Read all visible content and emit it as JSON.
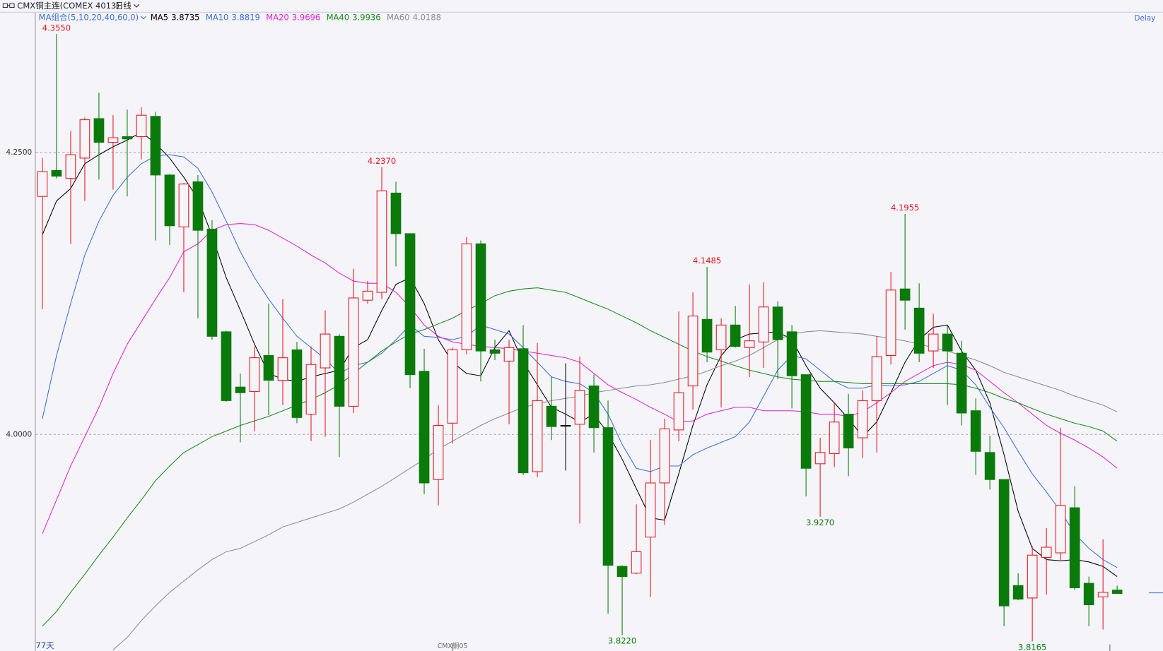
{
  "chart_data": {
    "type": "candlestick",
    "title": "CMX铜主连(COMEX 4013)",
    "period": "日线",
    "ma_group": "MA组合(5,10,20,40,60,0)",
    "delay": "Delay",
    "count_label": "77天",
    "ylim": [
      3.808,
      4.374
    ],
    "yticks": [
      {
        "value": 4.25,
        "label": "4.2500"
      },
      {
        "value": 4.0,
        "label": "4.0000"
      }
    ],
    "grid": true,
    "up_color": "#e8141c",
    "down_color": "#0a7a0a",
    "open": [
      4.211,
      4.234,
      4.227,
      4.245,
      4.28,
      4.259,
      4.264,
      4.264,
      4.282,
      4.23,
      4.184,
      4.224,
      4.182,
      4.091,
      4.042,
      4.038,
      4.07,
      4.048,
      4.075,
      4.018,
      4.059,
      4.087,
      4.025,
      4.119,
      4.126,
      4.214,
      4.178,
      4.056,
      3.96,
      4.01,
      4.075,
      4.169,
      4.075,
      4.065,
      4.076,
      3.967,
      4.025,
      4.008,
      4.009,
      4.043,
      4.006,
      3.883,
      3.877,
      3.909,
      3.957,
      4.004,
      4.043,
      4.102,
      4.075,
      4.097,
      4.077,
      4.082,
      4.113,
      4.091,
      4.053,
      3.974,
      3.983,
      4.018,
      3.997,
      4.03,
      4.07,
      4.129,
      4.112,
      4.074,
      4.089,
      4.072,
      4.021,
      3.984,
      3.96,
      3.866,
      3.855,
      3.891,
      3.895,
      3.935,
      3.868,
      3.856,
      3.862
    ],
    "high": [
      4.245,
      4.355,
      4.269,
      4.281,
      4.303,
      4.283,
      4.288,
      4.29,
      4.286,
      4.231,
      4.223,
      4.23,
      4.19,
      4.092,
      4.054,
      4.078,
      4.116,
      4.12,
      4.082,
      4.078,
      4.11,
      4.089,
      4.147,
      4.136,
      4.237,
      4.224,
      4.178,
      4.076,
      4.026,
      4.077,
      4.175,
      4.172,
      4.084,
      4.084,
      4.097,
      4.081,
      4.051,
      4.063,
      4.069,
      4.053,
      4.03,
      3.884,
      3.938,
      3.995,
      4.014,
      4.109,
      4.126,
      4.1485,
      4.103,
      4.114,
      4.133,
      4.135,
      4.118,
      4.097,
      4.053,
      3.997,
      4.028,
      4.036,
      4.039,
      4.087,
      4.144,
      4.1955,
      4.134,
      4.107,
      4.097,
      4.083,
      4.032,
      3.999,
      3.96,
      3.877,
      3.901,
      3.917,
      4.006,
      3.954,
      3.874,
      3.907,
      3.866
    ],
    "low": [
      4.111,
      4.227,
      4.169,
      4.207,
      4.226,
      4.217,
      4.211,
      4.244,
      4.172,
      4.168,
      4.126,
      4.103,
      4.084,
      4.029,
      3.993,
      4.003,
      4.017,
      4.026,
      4.01,
      3.994,
      3.998,
      3.98,
      4.019,
      4.116,
      4.12,
      4.149,
      4.041,
      3.947,
      3.937,
      3.992,
      4.071,
      4.047,
      4.066,
      4.009,
      3.964,
      3.962,
      3.995,
      3.968,
      3.921,
      3.984,
      3.841,
      3.822,
      3.876,
      3.856,
      3.92,
      3.994,
      4.022,
      4.064,
      4.024,
      4.077,
      4.051,
      4.059,
      4.049,
      4.023,
      3.945,
      3.927,
      3.971,
      3.963,
      3.979,
      3.984,
      4.062,
      4.093,
      4.064,
      4.059,
      4.026,
      4.008,
      3.964,
      3.951,
      3.83,
      3.853,
      3.8165,
      3.858,
      3.888,
      3.862,
      3.83,
      3.827,
      3.859
    ],
    "close": [
      4.233,
      4.229,
      4.248,
      4.279,
      4.259,
      4.263,
      4.262,
      4.283,
      4.23,
      4.185,
      4.222,
      4.181,
      4.087,
      4.03,
      4.037,
      4.068,
      4.048,
      4.068,
      4.015,
      4.062,
      4.089,
      4.025,
      4.121,
      4.127,
      4.216,
      4.178,
      4.053,
      3.957,
      4.008,
      4.075,
      4.169,
      4.074,
      4.072,
      4.077,
      3.966,
      4.03,
      4.007,
      4.008,
      4.039,
      4.006,
      3.884,
      3.874,
      3.896,
      3.957,
      4.005,
      4.037,
      4.105,
      4.073,
      4.097,
      4.078,
      4.083,
      4.113,
      4.084,
      4.052,
      3.97,
      3.984,
      4.011,
      3.988,
      4.03,
      4.069,
      4.128,
      4.119,
      4.072,
      4.089,
      4.074,
      4.019,
      3.985,
      3.96,
      3.848,
      3.854,
      3.893,
      3.9,
      3.937,
      3.864,
      3.849,
      3.86,
      3.859
    ],
    "series": [
      {
        "name": "MA5",
        "color": "#000000",
        "current": "3.8735",
        "values": [
          4.177,
          4.207,
          4.218,
          4.24,
          4.248,
          4.255,
          4.261,
          4.268,
          4.258,
          4.245,
          4.228,
          4.209,
          4.176,
          4.139,
          4.11,
          4.08,
          4.054,
          4.049,
          4.047,
          4.051,
          4.054,
          4.057,
          4.077,
          4.084,
          4.11,
          4.133,
          4.139,
          4.116,
          4.084,
          4.064,
          4.054,
          4.052,
          4.077,
          4.092,
          4.064,
          4.044,
          4.024,
          4.018,
          4.011,
          4.018,
          4.001,
          3.978,
          3.952,
          3.926,
          3.924,
          3.965,
          4.008,
          4.044,
          4.07,
          4.084,
          4.089,
          4.09,
          4.091,
          4.084,
          4.061,
          4.041,
          4.028,
          4.014,
          3.998,
          4.011,
          4.037,
          4.064,
          4.084,
          4.095,
          4.097,
          4.074,
          4.057,
          4.028,
          3.982,
          3.932,
          3.899,
          3.889,
          3.888,
          3.889,
          3.887,
          3.883,
          3.874
        ]
      },
      {
        "name": "MA10",
        "color": "#3a6fd8",
        "current": "3.8819",
        "values": [
          4.014,
          4.07,
          4.116,
          4.159,
          4.189,
          4.212,
          4.228,
          4.24,
          4.247,
          4.248,
          4.246,
          4.236,
          4.215,
          4.189,
          4.162,
          4.139,
          4.12,
          4.103,
          4.087,
          4.077,
          4.067,
          4.054,
          4.061,
          4.064,
          4.072,
          4.084,
          4.097,
          4.087,
          4.086,
          4.084,
          4.087,
          4.097,
          4.093,
          4.089,
          4.077,
          4.064,
          4.051,
          4.047,
          4.045,
          4.037,
          4.018,
          3.991,
          3.97,
          3.967,
          3.972,
          3.972,
          3.982,
          3.988,
          3.993,
          3.998,
          4.011,
          4.034,
          4.057,
          4.07,
          4.067,
          4.057,
          4.047,
          4.041,
          4.041,
          4.044,
          4.043,
          4.044,
          4.047,
          4.054,
          4.061,
          4.057,
          4.044,
          4.024,
          4.006,
          3.985,
          3.965,
          3.949,
          3.932,
          3.912,
          3.899,
          3.889,
          3.882
        ]
      },
      {
        "name": "MA20",
        "color": "#e020d8",
        "current": "3.9696",
        "values": [
          3.912,
          3.942,
          3.972,
          3.998,
          4.024,
          4.054,
          4.08,
          4.1,
          4.12,
          4.139,
          4.162,
          4.169,
          4.181,
          4.186,
          4.187,
          4.186,
          4.181,
          4.174,
          4.167,
          4.159,
          4.152,
          4.143,
          4.136,
          4.134,
          4.134,
          4.126,
          4.113,
          4.097,
          4.087,
          4.082,
          4.08,
          4.078,
          4.077,
          4.076,
          4.074,
          4.072,
          4.07,
          4.068,
          4.064,
          4.054,
          4.044,
          4.037,
          4.031,
          4.024,
          4.018,
          4.011,
          4.012,
          4.018,
          4.021,
          4.024,
          4.024,
          4.021,
          4.021,
          4.021,
          4.02,
          4.018,
          4.018,
          4.016,
          4.02,
          4.028,
          4.037,
          4.047,
          4.054,
          4.061,
          4.064,
          4.062,
          4.057,
          4.047,
          4.037,
          4.028,
          4.018,
          4.008,
          4.001,
          3.995,
          3.988,
          3.98,
          3.97
        ]
      },
      {
        "name": "MA40",
        "color": "#1a8a1a",
        "current": "3.9936",
        "values": [
          3.83,
          3.843,
          3.86,
          3.876,
          3.893,
          3.909,
          3.926,
          3.942,
          3.959,
          3.972,
          3.984,
          3.991,
          3.998,
          4.003,
          4.008,
          4.012,
          4.016,
          4.021,
          4.026,
          4.031,
          4.037,
          4.044,
          4.054,
          4.064,
          4.074,
          4.082,
          4.089,
          4.093,
          4.098,
          4.103,
          4.11,
          4.116,
          4.123,
          4.127,
          4.129,
          4.13,
          4.128,
          4.126,
          4.121,
          4.116,
          4.111,
          4.105,
          4.099,
          4.092,
          4.086,
          4.08,
          4.074,
          4.069,
          4.065,
          4.061,
          4.057,
          4.054,
          4.051,
          4.049,
          4.048,
          4.047,
          4.047,
          4.046,
          4.045,
          4.045,
          4.045,
          4.045,
          4.045,
          4.045,
          4.045,
          4.044,
          4.041,
          4.037,
          4.032,
          4.028,
          4.023,
          4.018,
          4.014,
          4.01,
          4.007,
          4.003,
          3.994
        ]
      },
      {
        "name": "MA60",
        "color": "#8c8c8c",
        "current": "4.0188",
        "values": [
          null,
          null,
          null,
          null,
          null,
          3.809,
          3.82,
          3.835,
          3.848,
          3.86,
          3.87,
          3.88,
          3.889,
          3.896,
          3.899,
          3.905,
          3.911,
          3.918,
          3.922,
          3.926,
          3.93,
          3.934,
          3.94,
          3.947,
          3.954,
          3.962,
          3.97,
          3.978,
          3.987,
          3.994,
          4.001,
          4.008,
          4.014,
          4.019,
          4.024,
          4.027,
          4.03,
          4.032,
          4.034,
          4.037,
          4.039,
          4.041,
          4.043,
          4.044,
          4.046,
          4.049,
          4.052,
          4.056,
          4.061,
          4.065,
          4.07,
          4.077,
          4.084,
          4.089,
          4.091,
          4.092,
          4.091,
          4.09,
          4.089,
          4.087,
          4.085,
          4.083,
          4.08,
          4.077,
          4.074,
          4.07,
          4.066,
          4.061,
          4.055,
          4.051,
          4.047,
          4.043,
          4.039,
          4.034,
          4.03,
          4.026,
          4.02
        ]
      }
    ],
    "annotations": [
      {
        "index": 1,
        "value": 4.355,
        "label": "4.3550",
        "color": "#e8141c"
      },
      {
        "index": 24,
        "value": 4.237,
        "label": "4.2370",
        "color": "#e8141c"
      },
      {
        "index": 47,
        "value": 4.1485,
        "label": "4.1485",
        "color": "#e8141c"
      },
      {
        "index": 61,
        "value": 4.1955,
        "label": "4.1955",
        "color": "#e8141c"
      },
      {
        "index": 55,
        "value": 3.927,
        "label": "3.9270",
        "color": "#0a7a0a"
      },
      {
        "index": 41,
        "value": 3.822,
        "label": "3.8220",
        "color": "#0a7a0a"
      },
      {
        "index": 70,
        "value": 3.8165,
        "label": "3.8165",
        "color": "#0a7a0a"
      }
    ],
    "x_labels": [
      {
        "index": 29,
        "label": "CMX铜05"
      }
    ]
  }
}
